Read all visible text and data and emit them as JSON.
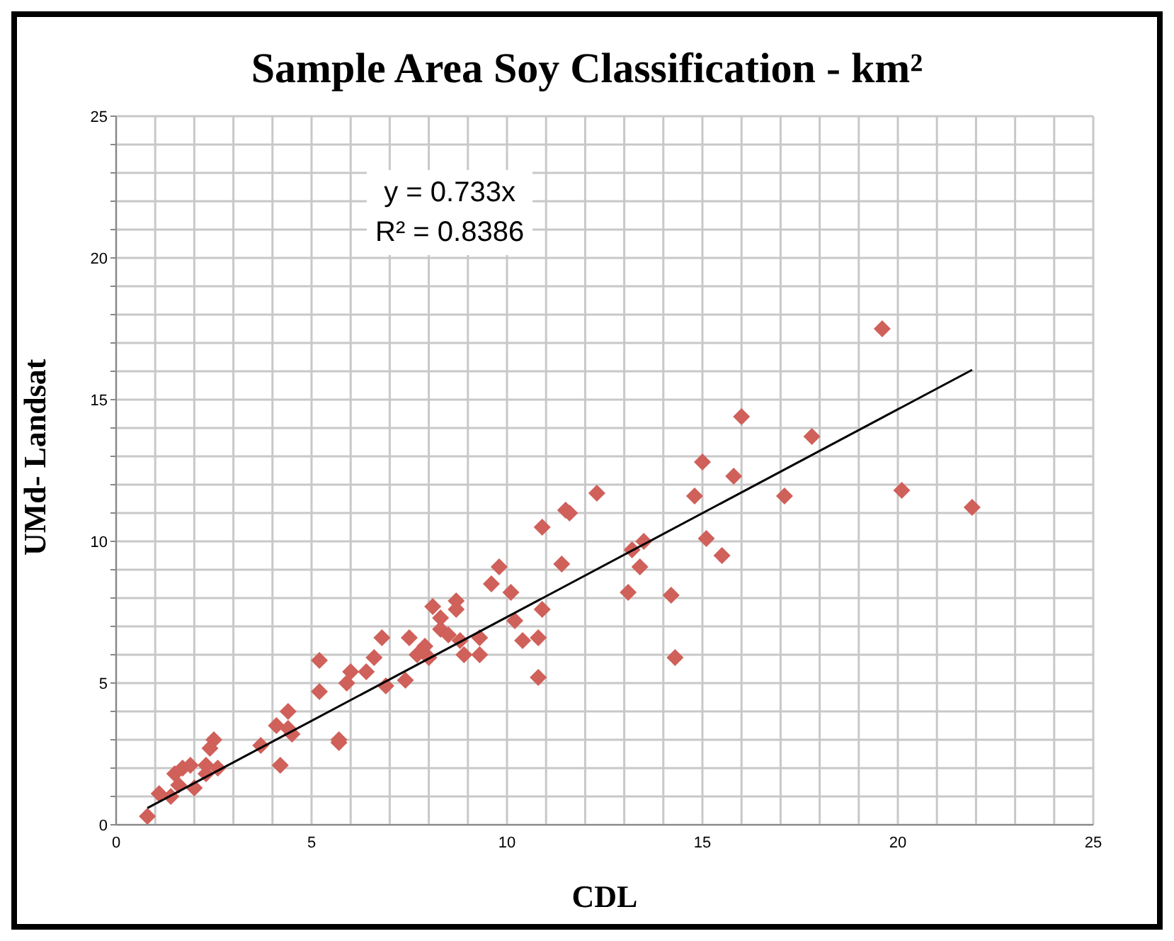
{
  "chart_data": {
    "type": "scatter",
    "title": "Sample Area Soy Classification - km²",
    "xlabel": "CDL",
    "ylabel": "UMd- Landsat",
    "annotations": [
      "y = 0.733x",
      "R² = 0.8386"
    ],
    "xlim": [
      0,
      25
    ],
    "ylim": [
      0,
      25
    ],
    "xticks": [
      0,
      {
        "value": 1,
        "label": null
      },
      {
        "value": 2,
        "label": null
      },
      {
        "value": 3,
        "label": null
      },
      {
        "value": 4,
        "label": null
      },
      5,
      {
        "value": 6,
        "label": null
      },
      {
        "value": 7,
        "label": null
      },
      {
        "value": 8,
        "label": null
      },
      {
        "value": 9,
        "label": null
      },
      10,
      {
        "value": 11,
        "label": null
      },
      {
        "value": 12,
        "label": null
      },
      {
        "value": 13,
        "label": null
      },
      {
        "value": 14,
        "label": null
      },
      15,
      {
        "value": 16,
        "label": null
      },
      {
        "value": 17,
        "label": null
      },
      {
        "value": 18,
        "label": null
      },
      {
        "value": 19,
        "label": null
      },
      20,
      {
        "value": 21,
        "label": null
      },
      {
        "value": 22,
        "label": null
      },
      {
        "value": 23,
        "label": null
      },
      {
        "value": 24,
        "label": null
      },
      25
    ],
    "yticks": [
      0,
      {
        "value": 1,
        "label": null
      },
      {
        "value": 2,
        "label": null
      },
      {
        "value": 3,
        "label": null
      },
      {
        "value": 4,
        "label": null
      },
      5,
      {
        "value": 6,
        "label": null
      },
      {
        "value": 7,
        "label": null
      },
      {
        "value": 8,
        "label": null
      },
      {
        "value": 9,
        "label": null
      },
      10,
      {
        "value": 11,
        "label": null
      },
      {
        "value": 12,
        "label": null
      },
      {
        "value": 13,
        "label": null
      },
      {
        "value": 14,
        "label": null
      },
      15,
      {
        "value": 16,
        "label": null
      },
      {
        "value": 17,
        "label": null
      },
      {
        "value": 18,
        "label": null
      },
      {
        "value": 19,
        "label": null
      },
      20,
      {
        "value": 21,
        "label": null
      },
      {
        "value": 22,
        "label": null
      },
      {
        "value": 23,
        "label": null
      },
      {
        "value": 24,
        "label": null
      },
      25
    ],
    "grid": true,
    "marker": "diamond",
    "series": [
      {
        "color": "#d0605a",
        "x": [
          0.8,
          1.1,
          1.4,
          1.6,
          1.5,
          1.7,
          1.9,
          2.0,
          2.3,
          2.3,
          2.4,
          2.5,
          2.6,
          3.7,
          4.1,
          4.2,
          4.4,
          4.4,
          4.5,
          5.2,
          5.2,
          5.7,
          5.7,
          5.9,
          6.0,
          6.4,
          6.6,
          6.8,
          6.9,
          7.4,
          7.5,
          7.7,
          7.9,
          8.0,
          8.1,
          8.3,
          8.3,
          8.5,
          8.7,
          8.7,
          8.8,
          8.9,
          9.3,
          9.3,
          9.6,
          9.8,
          10.1,
          10.2,
          10.4,
          10.8,
          10.8,
          10.9,
          10.9,
          11.4,
          11.5,
          11.6,
          12.3,
          13.1,
          13.2,
          13.4,
          13.5,
          14.2,
          14.3,
          14.8,
          15.0,
          15.1,
          15.5,
          15.8,
          16.0,
          17.1,
          17.8,
          19.6,
          20.1,
          21.9
        ],
        "values": [
          0.3,
          1.1,
          1.0,
          1.4,
          1.8,
          2.0,
          2.1,
          1.3,
          1.8,
          2.1,
          2.7,
          3.0,
          2.0,
          2.8,
          3.5,
          2.1,
          4.0,
          3.4,
          3.2,
          4.7,
          5.8,
          2.9,
          3.0,
          5.0,
          5.4,
          5.4,
          5.9,
          6.6,
          4.9,
          5.1,
          6.6,
          6.0,
          6.3,
          5.9,
          7.7,
          7.3,
          6.9,
          6.7,
          7.9,
          7.6,
          6.5,
          6.0,
          6.0,
          6.6,
          8.5,
          9.1,
          8.2,
          7.2,
          6.5,
          6.6,
          5.2,
          7.6,
          10.5,
          9.2,
          11.1,
          11.0,
          11.7,
          8.2,
          9.7,
          9.1,
          10.0,
          8.1,
          5.9,
          11.6,
          12.8,
          10.1,
          9.5,
          12.3,
          14.4,
          11.6,
          13.7,
          17.5,
          11.8,
          11.2
        ]
      },
      {
        "type": "line",
        "marker": "none",
        "color": "#000000",
        "x": [
          0.8,
          21.9
        ],
        "values": [
          0.59,
          16.05
        ]
      }
    ]
  }
}
